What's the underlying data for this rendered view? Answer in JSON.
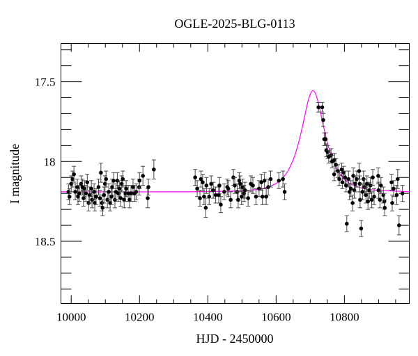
{
  "chart_data": {
    "type": "scatter",
    "title": "OGLE-2025-BLG-0113",
    "xlabel": "HJD - 2450000",
    "ylabel": "I magnitude",
    "xlim": [
      9970,
      10990
    ],
    "ylim": [
      18.89,
      17.26
    ],
    "y_inverted": true,
    "grid": false,
    "x_ticks": [
      10000,
      10200,
      10400,
      10600,
      10800
    ],
    "x_tick_labels": [
      "10000",
      "10200",
      "10400",
      "10600",
      "10800"
    ],
    "x_minor_step": 50,
    "y_ticks": [
      17.5,
      18,
      18.5
    ],
    "y_tick_labels": [
      "17.5",
      "18",
      "18.5"
    ],
    "y_minor_step": 0.1,
    "colors": {
      "points": "#000000",
      "errorbars": "#444444",
      "model": "#ff00ff"
    },
    "points_format": [
      "hjd",
      "mag",
      "err"
    ],
    "points": [
      [
        9992,
        18.19,
        0.05
      ],
      [
        9995,
        18.22,
        0.05
      ],
      [
        10000,
        18.14,
        0.05
      ],
      [
        10004,
        18.11,
        0.05
      ],
      [
        10008,
        18.08,
        0.05
      ],
      [
        10012,
        18.19,
        0.05
      ],
      [
        10018,
        18.16,
        0.05
      ],
      [
        10020,
        18.22,
        0.05
      ],
      [
        10024,
        18.2,
        0.05
      ],
      [
        10029,
        18.14,
        0.05
      ],
      [
        10033,
        18.16,
        0.05
      ],
      [
        10036,
        18.23,
        0.05
      ],
      [
        10039,
        18.17,
        0.05
      ],
      [
        10043,
        18.2,
        0.05
      ],
      [
        10047,
        18.13,
        0.05
      ],
      [
        10051,
        18.26,
        0.05
      ],
      [
        10054,
        18.21,
        0.05
      ],
      [
        10059,
        18.17,
        0.05
      ],
      [
        10061,
        18.24,
        0.05
      ],
      [
        10067,
        18.19,
        0.05
      ],
      [
        10069,
        18.26,
        0.05
      ],
      [
        10073,
        18.22,
        0.05
      ],
      [
        10080,
        18.16,
        0.05
      ],
      [
        10084,
        18.23,
        0.05
      ],
      [
        10087,
        18.07,
        0.06
      ],
      [
        10090,
        18.26,
        0.05
      ],
      [
        10092,
        18.29,
        0.05
      ],
      [
        10096,
        18.21,
        0.05
      ],
      [
        10099,
        18.14,
        0.05
      ],
      [
        10102,
        18.11,
        0.05
      ],
      [
        10106,
        18.24,
        0.05
      ],
      [
        10110,
        18.19,
        0.05
      ],
      [
        10114,
        18.26,
        0.05
      ],
      [
        10118,
        18.22,
        0.05
      ],
      [
        10120,
        18.16,
        0.05
      ],
      [
        10124,
        18.12,
        0.05
      ],
      [
        10128,
        18.24,
        0.05
      ],
      [
        10131,
        18.19,
        0.05
      ],
      [
        10135,
        18.12,
        0.05
      ],
      [
        10138,
        18.2,
        0.05
      ],
      [
        10141,
        18.17,
        0.05
      ],
      [
        10145,
        18.23,
        0.05
      ],
      [
        10148,
        18.14,
        0.05
      ],
      [
        10151,
        18.11,
        0.05
      ],
      [
        10155,
        18.24,
        0.05
      ],
      [
        10159,
        18.2,
        0.05
      ],
      [
        10161,
        18.17,
        0.05
      ],
      [
        10167,
        18.2,
        0.05
      ],
      [
        10171,
        18.24,
        0.05
      ],
      [
        10175,
        18.2,
        0.05
      ],
      [
        10181,
        18.16,
        0.05
      ],
      [
        10186,
        18.2,
        0.05
      ],
      [
        10190,
        18.19,
        0.05
      ],
      [
        10199,
        18.16,
        0.05
      ],
      [
        10200,
        18.12,
        0.05
      ],
      [
        10210,
        18.09,
        0.06
      ],
      [
        10224,
        18.23,
        0.06
      ],
      [
        10226,
        18.16,
        0.05
      ],
      [
        10242,
        18.05,
        0.06
      ],
      [
        10363,
        18.1,
        0.05
      ],
      [
        10369,
        18.17,
        0.05
      ],
      [
        10377,
        18.23,
        0.05
      ],
      [
        10380,
        18.11,
        0.05
      ],
      [
        10385,
        18.13,
        0.05
      ],
      [
        10389,
        18.22,
        0.05
      ],
      [
        10394,
        18.29,
        0.06
      ],
      [
        10396,
        18.15,
        0.05
      ],
      [
        10404,
        18.22,
        0.05
      ],
      [
        10410,
        18.14,
        0.05
      ],
      [
        10416,
        18.18,
        0.05
      ],
      [
        10423,
        18.21,
        0.05
      ],
      [
        10432,
        18.21,
        0.05
      ],
      [
        10434,
        18.15,
        0.05
      ],
      [
        10438,
        18.27,
        0.05
      ],
      [
        10448,
        18.19,
        0.05
      ],
      [
        10457,
        18.16,
        0.05
      ],
      [
        10460,
        18.17,
        0.05
      ],
      [
        10467,
        18.24,
        0.05
      ],
      [
        10475,
        18.1,
        0.05
      ],
      [
        10479,
        18.15,
        0.05
      ],
      [
        10486,
        18.19,
        0.05
      ],
      [
        10489,
        18.24,
        0.05
      ],
      [
        10492,
        18.12,
        0.05
      ],
      [
        10495,
        18.14,
        0.05
      ],
      [
        10499,
        18.22,
        0.05
      ],
      [
        10502,
        18.16,
        0.05
      ],
      [
        10506,
        18.2,
        0.05
      ],
      [
        10509,
        18.18,
        0.05
      ],
      [
        10518,
        18.23,
        0.05
      ],
      [
        10526,
        18.14,
        0.05
      ],
      [
        10532,
        18.15,
        0.05
      ],
      [
        10541,
        18.22,
        0.05
      ],
      [
        10550,
        18.17,
        0.05
      ],
      [
        10557,
        18.13,
        0.05
      ],
      [
        10560,
        18.22,
        0.05
      ],
      [
        10566,
        18.12,
        0.05
      ],
      [
        10571,
        18.22,
        0.05
      ],
      [
        10577,
        18.16,
        0.05
      ],
      [
        10584,
        18.11,
        0.05
      ],
      [
        10608,
        18.12,
        0.05
      ],
      [
        10620,
        18.11,
        0.05
      ],
      [
        10625,
        18.19,
        0.05
      ],
      [
        10724,
        17.66,
        0.03
      ],
      [
        10735,
        17.66,
        0.03
      ],
      [
        10738,
        17.74,
        0.04
      ],
      [
        10741,
        17.86,
        0.04
      ],
      [
        10745,
        17.86,
        0.04
      ],
      [
        10747,
        17.93,
        0.04
      ],
      [
        10751,
        17.94,
        0.04
      ],
      [
        10754,
        17.97,
        0.04
      ],
      [
        10761,
        17.96,
        0.04
      ],
      [
        10764,
        18.0,
        0.04
      ],
      [
        10771,
        17.99,
        0.04
      ],
      [
        10775,
        18.02,
        0.04
      ],
      [
        10770,
        18.08,
        0.04
      ],
      [
        10781,
        18.06,
        0.04
      ],
      [
        10785,
        18.11,
        0.04
      ],
      [
        10792,
        18.05,
        0.04
      ],
      [
        10794,
        18.13,
        0.04
      ],
      [
        10798,
        18.07,
        0.04
      ],
      [
        10802,
        18.1,
        0.04
      ],
      [
        10805,
        18.15,
        0.04
      ],
      [
        10807,
        18.39,
        0.05
      ],
      [
        10812,
        18.11,
        0.05
      ],
      [
        10815,
        18.19,
        0.05
      ],
      [
        10819,
        18.17,
        0.05
      ],
      [
        10824,
        18.26,
        0.05
      ],
      [
        10826,
        18.09,
        0.05
      ],
      [
        10829,
        18.18,
        0.05
      ],
      [
        10832,
        18.14,
        0.05
      ],
      [
        10836,
        18.11,
        0.05
      ],
      [
        10843,
        18.06,
        0.05
      ],
      [
        10845,
        18.14,
        0.05
      ],
      [
        10846,
        18.24,
        0.05
      ],
      [
        10849,
        18.42,
        0.05
      ],
      [
        10853,
        18.19,
        0.05
      ],
      [
        10856,
        18.11,
        0.05
      ],
      [
        10859,
        18.16,
        0.05
      ],
      [
        10863,
        18.21,
        0.05
      ],
      [
        10866,
        18.14,
        0.05
      ],
      [
        10869,
        18.25,
        0.05
      ],
      [
        10873,
        18.18,
        0.05
      ],
      [
        10876,
        18.15,
        0.05
      ],
      [
        10880,
        18.24,
        0.05
      ],
      [
        10883,
        18.1,
        0.05
      ],
      [
        10887,
        18.22,
        0.05
      ],
      [
        10899,
        18.09,
        0.05
      ],
      [
        10900,
        18.18,
        0.05
      ],
      [
        10904,
        18.24,
        0.05
      ],
      [
        10907,
        18.15,
        0.05
      ],
      [
        10914,
        18.21,
        0.05
      ],
      [
        10917,
        18.25,
        0.05
      ],
      [
        10918,
        18.29,
        0.05
      ],
      [
        10938,
        18.13,
        0.05
      ],
      [
        10940,
        18.26,
        0.05
      ],
      [
        10944,
        18.17,
        0.05
      ],
      [
        10953,
        18.21,
        0.06
      ],
      [
        10956,
        18.11,
        0.06
      ],
      [
        10960,
        18.4,
        0.06
      ],
      [
        10970,
        18.2,
        0.05
      ]
    ],
    "model": {
      "x": [
        9970,
        10308,
        10458,
        10528,
        10568,
        10598,
        10618,
        10633,
        10648,
        10658,
        10668,
        10678,
        10683,
        10688,
        10693,
        10698,
        10703,
        10708,
        10713,
        10718,
        10723,
        10728,
        10733,
        10738,
        10748,
        10758,
        10768,
        10783,
        10798,
        10818,
        10848,
        10888,
        10958,
        10990
      ],
      "y": [
        18.19,
        18.19,
        18.186,
        18.179,
        18.165,
        18.14,
        18.107,
        18.065,
        18.0,
        17.94,
        17.865,
        17.772,
        17.723,
        17.673,
        17.627,
        17.59,
        17.565,
        17.556,
        17.565,
        17.59,
        17.627,
        17.673,
        17.723,
        17.772,
        17.865,
        17.94,
        18.0,
        18.065,
        18.107,
        18.14,
        18.165,
        18.179,
        18.186,
        18.19
      ]
    }
  }
}
